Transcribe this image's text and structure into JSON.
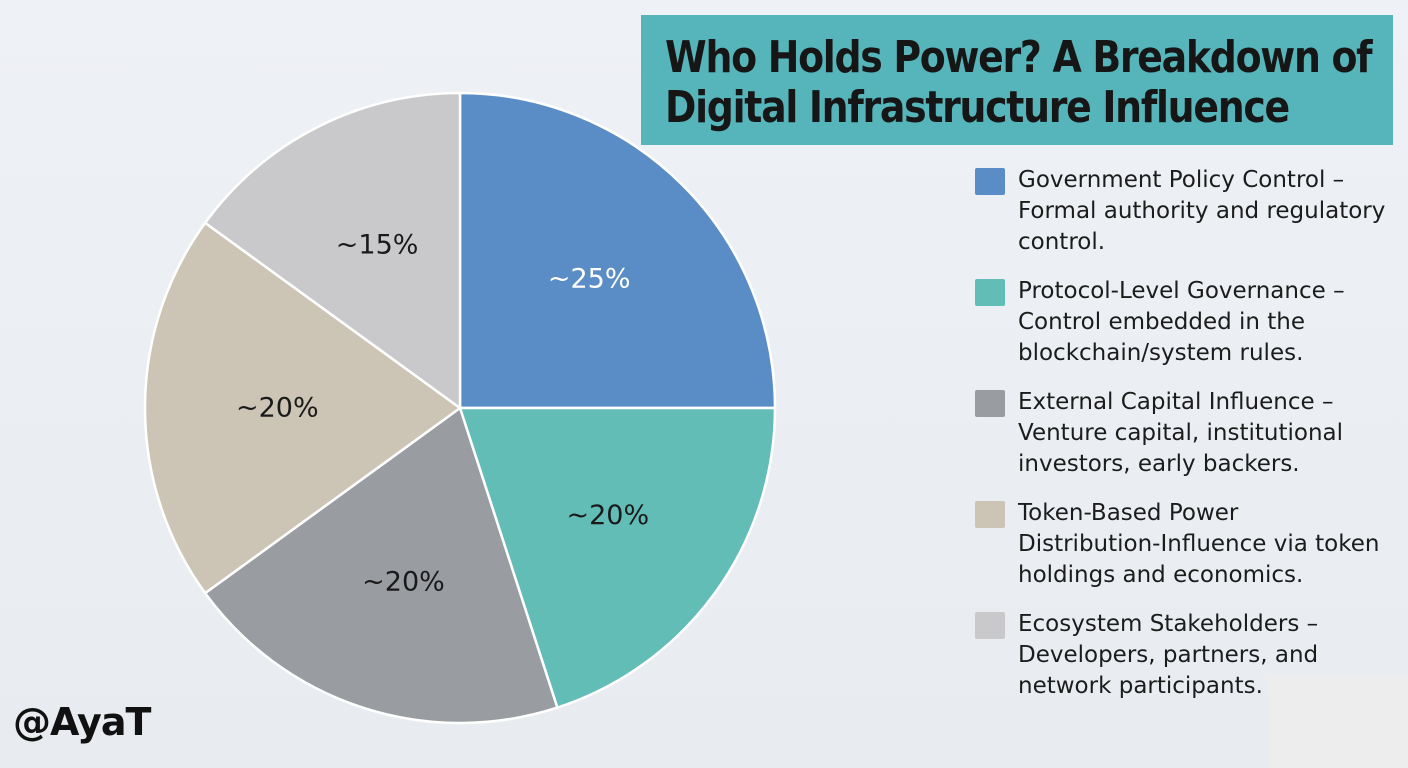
{
  "title": {
    "line1": "Who Holds Power? A Breakdown of",
    "line2": "Digital Infrastructure Influence"
  },
  "chart_data": {
    "type": "pie",
    "title": "Who Holds Power? A Breakdown of Digital Infrastructure Influence",
    "slices": [
      {
        "label": "~25%",
        "value": 25,
        "color": "#5a8dc6",
        "label_color": "#ffffff"
      },
      {
        "label": "~20%",
        "value": 20,
        "color": "#62bdb6",
        "label_color": "#1a1a1a"
      },
      {
        "label": "~20%",
        "value": 20,
        "color": "#999ca1",
        "label_color": "#1a1a1a"
      },
      {
        "label": "~20%",
        "value": 20,
        "color": "#ccc4b4",
        "label_color": "#1a1a1a"
      },
      {
        "label": "~15%",
        "value": 15,
        "color": "#c9c9cb",
        "label_color": "#1a1a1a"
      }
    ],
    "legend": [
      {
        "text": "Government Policy Control – Formal authority and regulatory control.",
        "color": "#5a8dc6"
      },
      {
        "text": "Protocol-Level Governance – Control embedded in the blockchain/system rules.",
        "color": "#62bdb6"
      },
      {
        "text": "External Capital Influence – Venture capital, institutional investors, early backers.",
        "color": "#999ca1"
      },
      {
        "text": "Token-Based Power Distribution-Influence via token holdings and economics.",
        "color": "#ccc4b4"
      },
      {
        "text": "Ecosystem Stakeholders – Developers, partners, and network participants.",
        "color": "#c9c9cb"
      }
    ],
    "legend_placement": "right"
  },
  "watermark": "@AyaT"
}
